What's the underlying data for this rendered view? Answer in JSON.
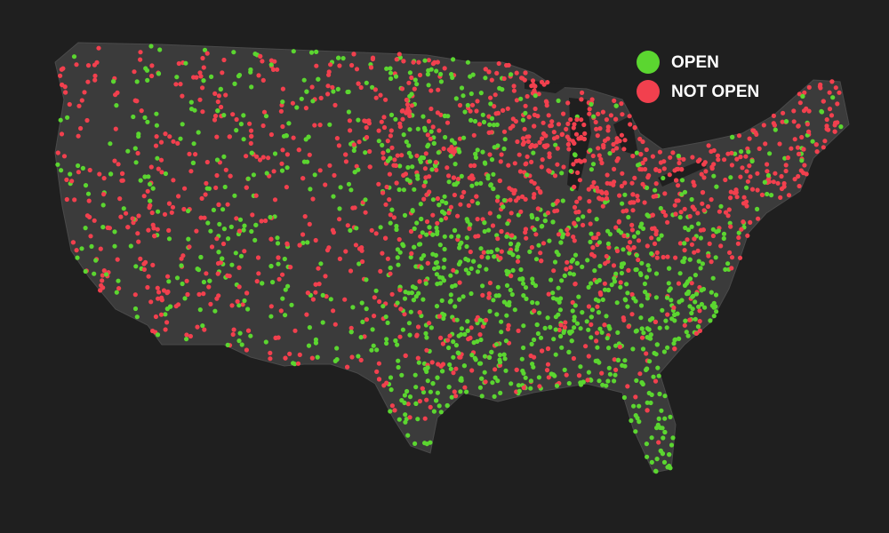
{
  "legend": [
    {
      "label": "OPEN",
      "color": "#5bd630"
    },
    {
      "label": "NOT OPEN",
      "color": "#f2404e"
    }
  ]
}
